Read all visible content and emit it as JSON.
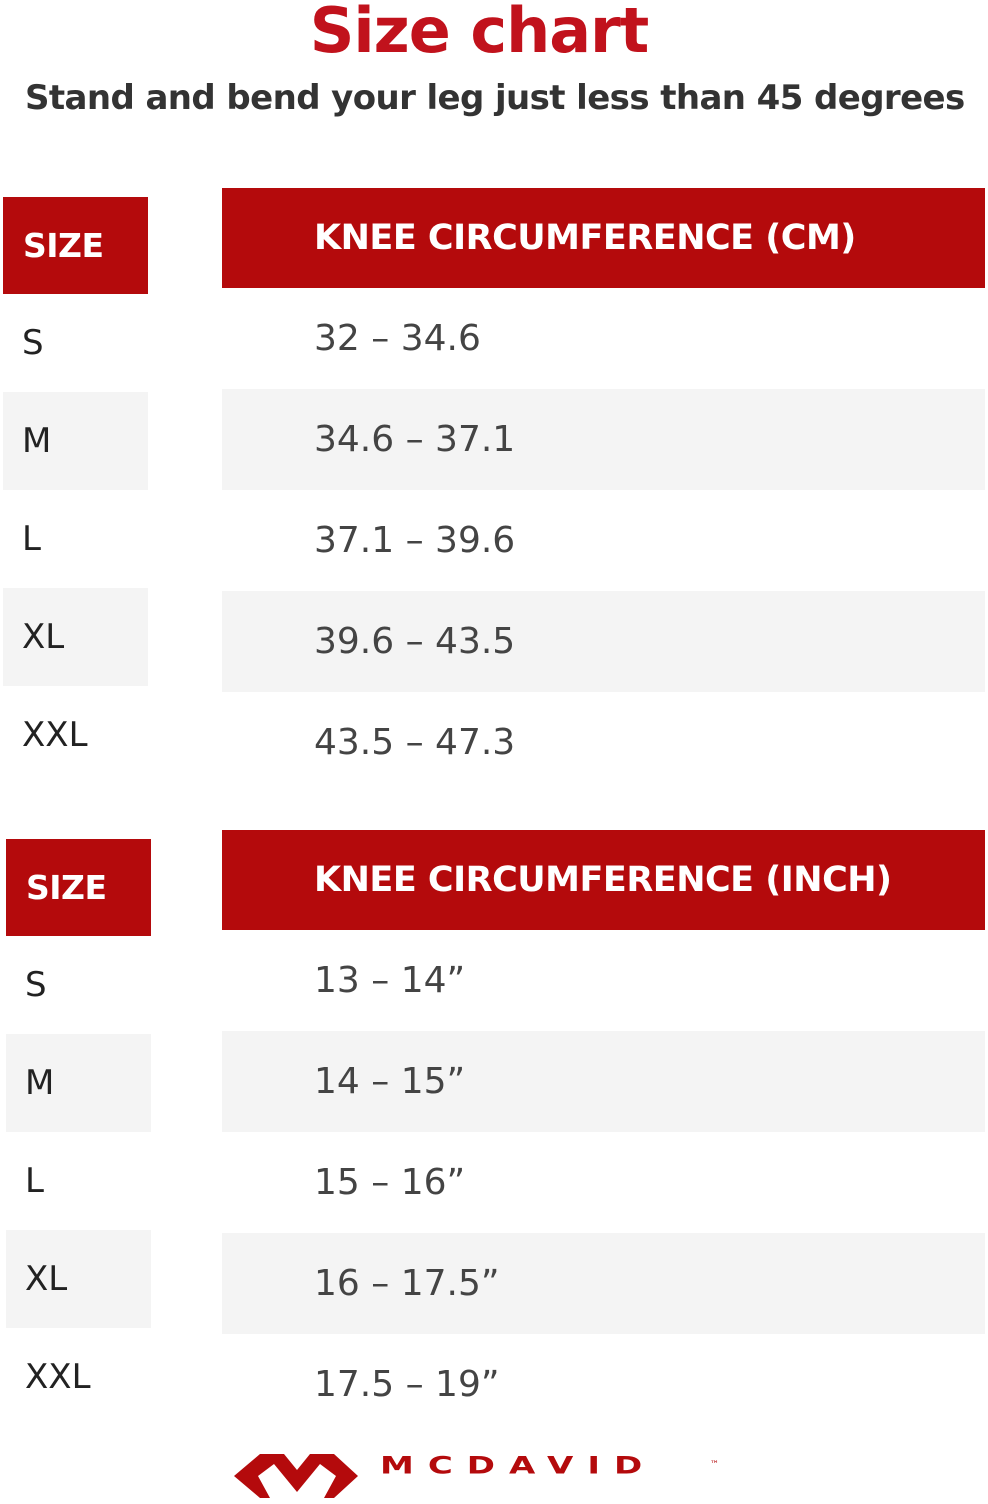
{
  "title": "Size chart",
  "subtitle": "Stand and bend your leg just less than 45 degrees",
  "tables": [
    {
      "size_header": "SIZE",
      "value_header": "KNEE CIRCUMFERENCE (CM)",
      "rows": [
        {
          "size": "S",
          "value": "32 – 34.6"
        },
        {
          "size": "M",
          "value": "34.6 – 37.1"
        },
        {
          "size": "L",
          "value": "37.1 – 39.6"
        },
        {
          "size": "XL",
          "value": "39.6 – 43.5"
        },
        {
          "size": "XXL",
          "value": "43.5 – 47.3"
        }
      ]
    },
    {
      "size_header": "SIZE",
      "value_header": "KNEE CIRCUMFERENCE (INCH)",
      "rows": [
        {
          "size": "S",
          "value": "13 – 14”"
        },
        {
          "size": "M",
          "value": "14 – 15”"
        },
        {
          "size": "L",
          "value": "15 – 16”"
        },
        {
          "size": "XL",
          "value": "16 – 17.5”"
        },
        {
          "size": "XXL",
          "value": "17.5 – 19”"
        }
      ]
    }
  ],
  "logo": {
    "text": "MCDAVID",
    "trademark": "™"
  },
  "colors": {
    "accent": "#b40a0c",
    "title": "#c1121c",
    "stripe": "#f4f4f4"
  }
}
